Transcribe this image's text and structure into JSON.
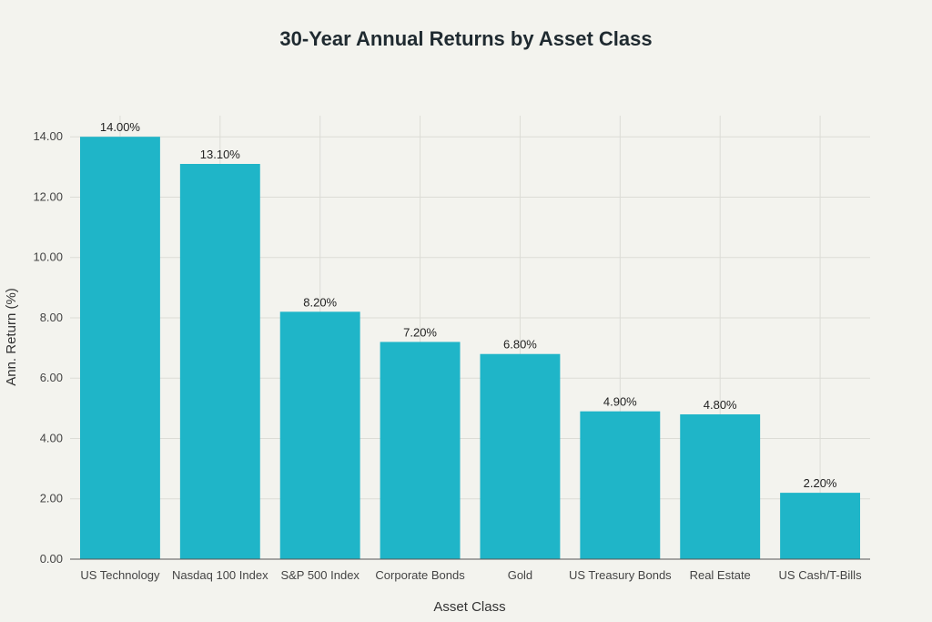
{
  "chart_data": {
    "type": "bar",
    "title": "30-Year Annual Returns by Asset Class",
    "xlabel": "Asset Class",
    "ylabel": "Ann. Return (%)",
    "categories": [
      "US Technology",
      "Nasdaq 100 Index",
      "S&P 500 Index",
      "Corporate Bonds",
      "Gold",
      "US Treasury Bonds",
      "Real Estate",
      "US Cash/T-Bills"
    ],
    "values": [
      14.0,
      13.1,
      8.2,
      7.2,
      6.8,
      4.9,
      4.8,
      2.2
    ],
    "data_labels": [
      "14.00%",
      "13.10%",
      "8.20%",
      "7.20%",
      "6.80%",
      "4.90%",
      "4.80%",
      "2.20%"
    ],
    "y_ticks": [
      "0.00",
      "2.00",
      "4.00",
      "6.00",
      "8.00",
      "10.00",
      "12.00",
      "14.00"
    ],
    "ylim": [
      0,
      14.7
    ],
    "grid": true,
    "bar_color": "#1fb5c8",
    "background": "#f3f3ee"
  }
}
